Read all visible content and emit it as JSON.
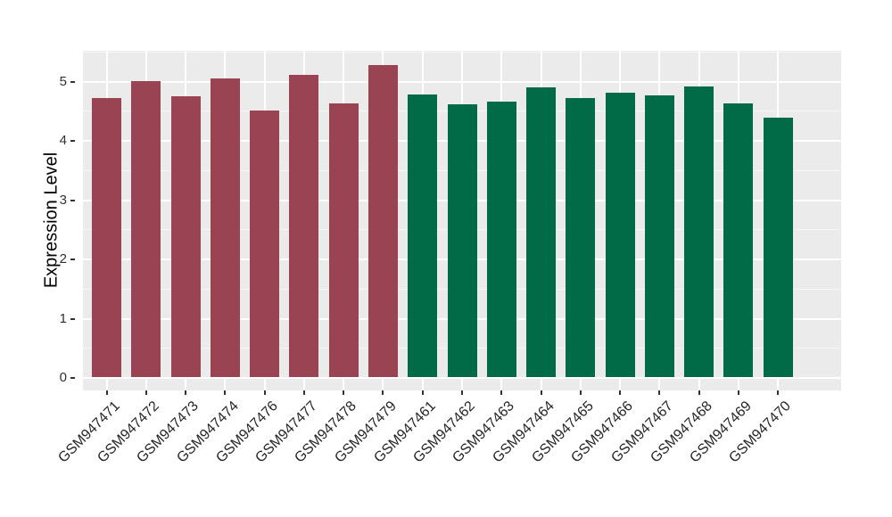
{
  "chart_data": {
    "type": "bar",
    "title": "",
    "xlabel": "",
    "ylabel": "Expression Level",
    "categories": [
      "GSM947471",
      "GSM947472",
      "GSM947473",
      "GSM947474",
      "GSM947476",
      "GSM947477",
      "GSM947478",
      "GSM947479",
      "GSM947461",
      "GSM947462",
      "GSM947463",
      "GSM947464",
      "GSM947465",
      "GSM947466",
      "GSM947467",
      "GSM947468",
      "GSM947469",
      "GSM947470"
    ],
    "values": [
      4.71,
      5.0,
      4.73,
      5.04,
      4.5,
      5.1,
      4.61,
      5.26,
      4.76,
      4.6,
      4.64,
      4.89,
      4.71,
      4.8,
      4.75,
      4.9,
      4.61,
      4.38
    ],
    "bar_colors": [
      "#9A4352",
      "#9A4352",
      "#9A4352",
      "#9A4352",
      "#9A4352",
      "#9A4352",
      "#9A4352",
      "#9A4352",
      "#016B48",
      "#016B48",
      "#016B48",
      "#016B48",
      "#016B48",
      "#016B48",
      "#016B48",
      "#016B48",
      "#016B48",
      "#016B48"
    ],
    "yticks": [
      0,
      1,
      2,
      3,
      4,
      5
    ],
    "yticks_minor": [
      0.5,
      1.5,
      2.5,
      3.5,
      4.5,
      5.5
    ],
    "ylim": [
      0,
      5.5
    ],
    "legend_position": "none",
    "grid": "white major + minor horizontal; white vertical at category centers",
    "panel_background": "#EBEBEB",
    "grid_color": "#FFFFFF",
    "tick_color": "#333333",
    "figure_background": "#FFFFFF"
  }
}
